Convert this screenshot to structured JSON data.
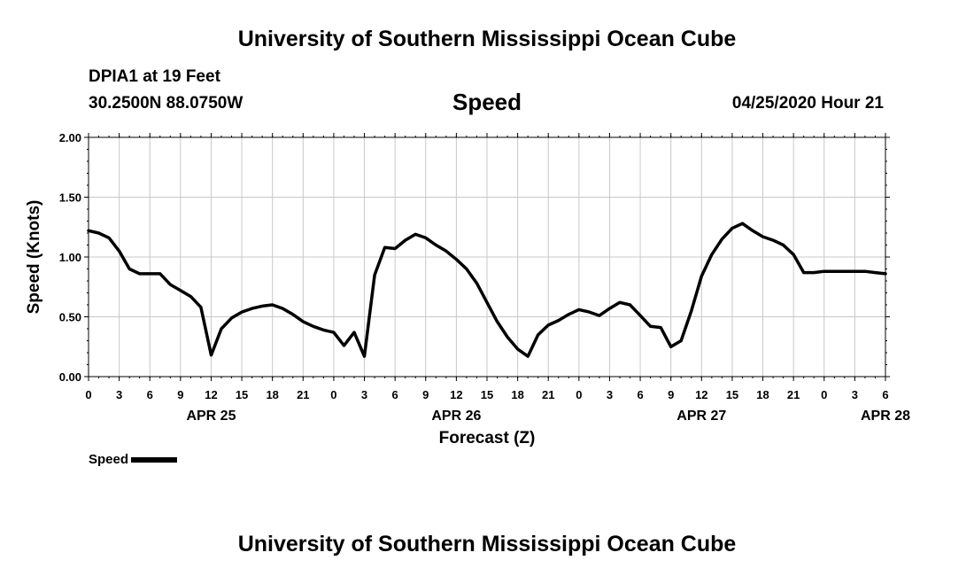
{
  "header": {
    "title": "University of Southern Mississippi Ocean Cube",
    "station": "DPIA1 at 19 Feet",
    "coordinates": "30.2500N 88.0750W",
    "variable": "Speed",
    "datetime": "04/25/2020 Hour 21"
  },
  "footer": {
    "title": "University of Southern Mississippi Ocean Cube"
  },
  "legend": {
    "label": "Speed"
  },
  "chart_data": {
    "type": "line",
    "title": "Speed",
    "xlabel": "Forecast (Z)",
    "ylabel": "Speed (Knots)",
    "ylim": [
      0,
      2
    ],
    "y_ticks": [
      "0.00",
      "0.50",
      "1.00",
      "1.50",
      "2.00"
    ],
    "y_tick_values": [
      0,
      0.5,
      1,
      1.5,
      2
    ],
    "x_start_hour": 0,
    "x_end_hour": 78,
    "x_ticks": [
      {
        "hour": 0,
        "label": "0"
      },
      {
        "hour": 3,
        "label": "3"
      },
      {
        "hour": 6,
        "label": "6"
      },
      {
        "hour": 9,
        "label": "9"
      },
      {
        "hour": 12,
        "label": "12"
      },
      {
        "hour": 15,
        "label": "15"
      },
      {
        "hour": 18,
        "label": "18"
      },
      {
        "hour": 21,
        "label": "21"
      },
      {
        "hour": 24,
        "label": "0"
      },
      {
        "hour": 27,
        "label": "3"
      },
      {
        "hour": 30,
        "label": "6"
      },
      {
        "hour": 33,
        "label": "9"
      },
      {
        "hour": 36,
        "label": "12"
      },
      {
        "hour": 39,
        "label": "15"
      },
      {
        "hour": 42,
        "label": "18"
      },
      {
        "hour": 45,
        "label": "21"
      },
      {
        "hour": 48,
        "label": "0"
      },
      {
        "hour": 51,
        "label": "3"
      },
      {
        "hour": 54,
        "label": "6"
      },
      {
        "hour": 57,
        "label": "9"
      },
      {
        "hour": 60,
        "label": "12"
      },
      {
        "hour": 63,
        "label": "15"
      },
      {
        "hour": 66,
        "label": "18"
      },
      {
        "hour": 69,
        "label": "21"
      },
      {
        "hour": 72,
        "label": "0"
      },
      {
        "hour": 75,
        "label": "3"
      },
      {
        "hour": 78,
        "label": "6"
      }
    ],
    "date_labels": [
      {
        "hour": 12,
        "label": "APR 25"
      },
      {
        "hour": 36,
        "label": "APR 26"
      },
      {
        "hour": 60,
        "label": "APR 27"
      },
      {
        "hour": 78,
        "label": "APR 28"
      }
    ],
    "series": [
      {
        "name": "Speed",
        "x": [
          0,
          1,
          2,
          3,
          4,
          5,
          6,
          7,
          8,
          9,
          10,
          11,
          12,
          13,
          14,
          15,
          16,
          17,
          18,
          19,
          20,
          21,
          22,
          23,
          24,
          25,
          26,
          27,
          28,
          29,
          30,
          31,
          32,
          33,
          34,
          35,
          36,
          37,
          38,
          39,
          40,
          41,
          42,
          43,
          44,
          45,
          46,
          47,
          48,
          49,
          50,
          51,
          52,
          53,
          54,
          55,
          56,
          57,
          58,
          59,
          60,
          61,
          62,
          63,
          64,
          65,
          66,
          67,
          68,
          69,
          70,
          71,
          72,
          73,
          74,
          75,
          76,
          77,
          78
        ],
        "values": [
          1.22,
          1.2,
          1.16,
          1.05,
          0.9,
          0.86,
          0.86,
          0.86,
          0.77,
          0.72,
          0.67,
          0.58,
          0.18,
          0.4,
          0.49,
          0.54,
          0.57,
          0.59,
          0.6,
          0.57,
          0.52,
          0.46,
          0.42,
          0.39,
          0.37,
          0.26,
          0.37,
          0.17,
          0.85,
          1.08,
          1.07,
          1.14,
          1.19,
          1.16,
          1.1,
          1.05,
          0.98,
          0.9,
          0.78,
          0.62,
          0.46,
          0.33,
          0.23,
          0.17,
          0.35,
          0.43,
          0.47,
          0.52,
          0.56,
          0.54,
          0.51,
          0.57,
          0.62,
          0.6,
          0.51,
          0.42,
          0.41,
          0.25,
          0.3,
          0.55,
          0.84,
          1.02,
          1.15,
          1.24,
          1.28,
          1.22,
          1.17,
          1.14,
          1.1,
          1.02,
          0.87,
          0.87,
          0.88,
          0.88,
          0.88,
          0.88,
          0.88,
          0.87,
          0.86
        ]
      }
    ]
  }
}
